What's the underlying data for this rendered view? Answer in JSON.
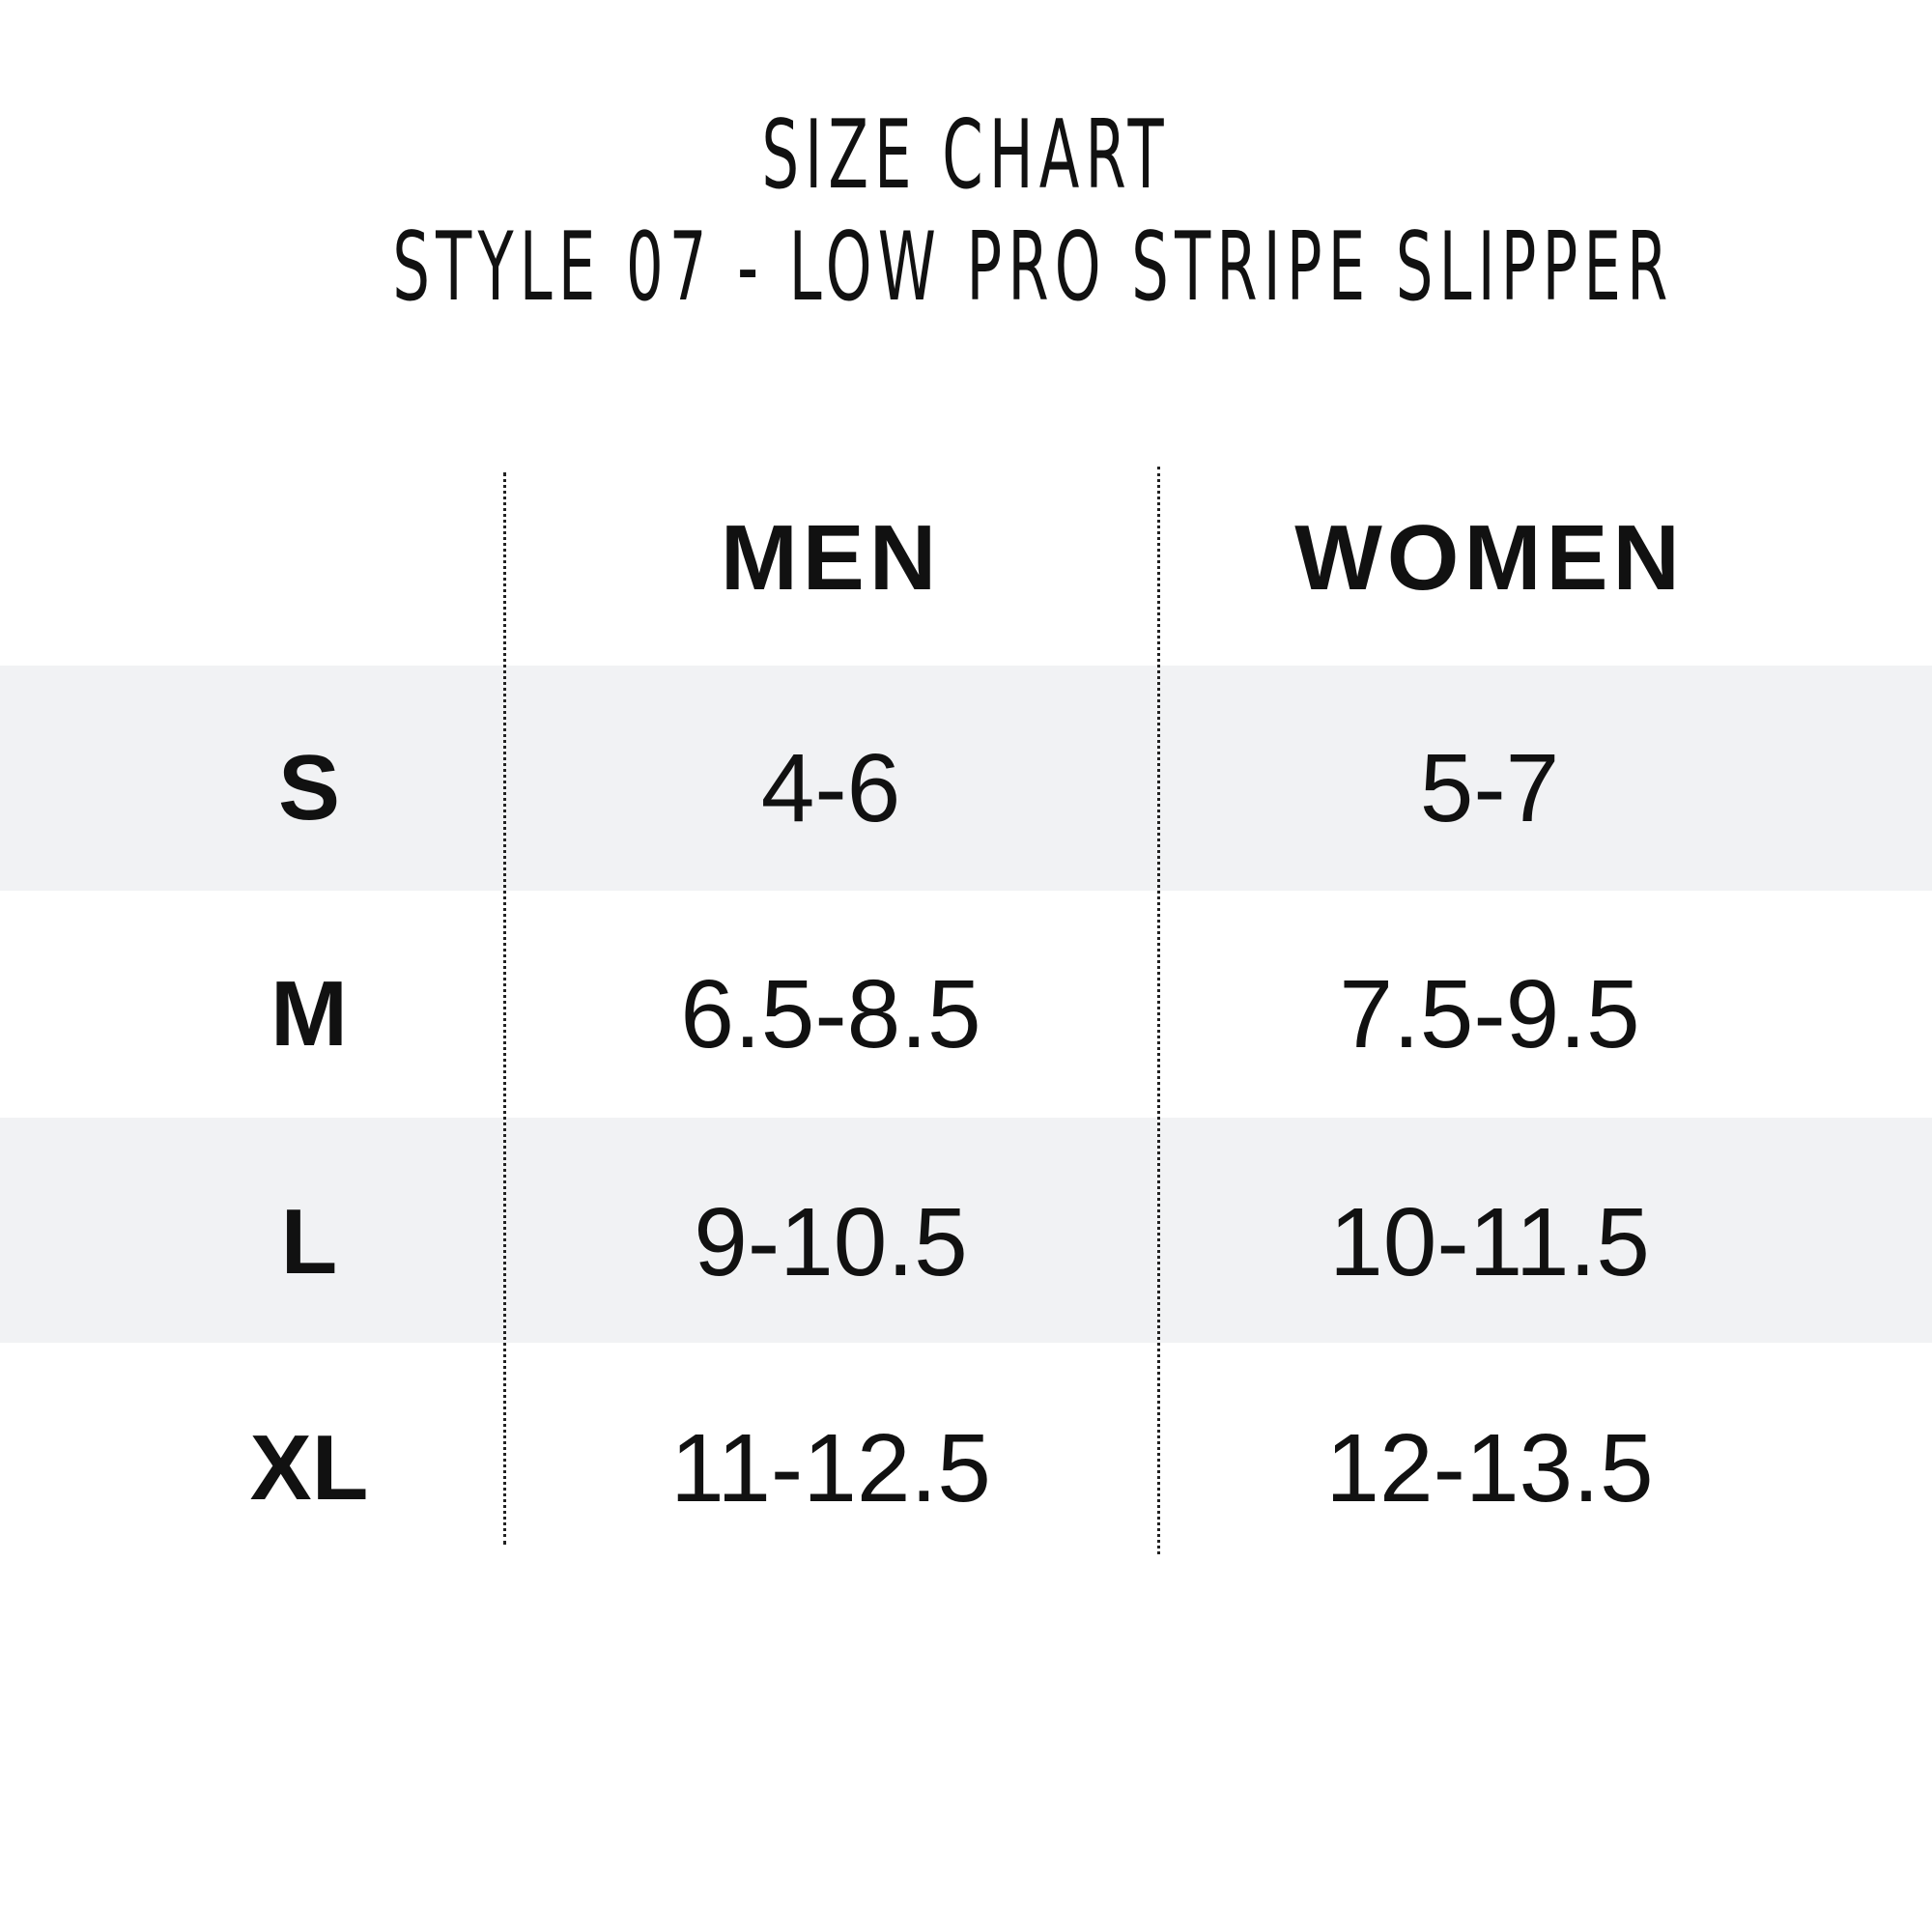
{
  "title": {
    "line1": "SIZE CHART",
    "line2": "STYLE 07 - LOW PRO STRIPE SLIPPER"
  },
  "table": {
    "headers": [
      "",
      "MEN",
      "WOMEN"
    ],
    "rows": [
      {
        "size": "S",
        "men": "4-6",
        "women": "5-7"
      },
      {
        "size": "M",
        "men": "6.5-8.5",
        "women": "7.5-9.5"
      },
      {
        "size": "L",
        "men": "9-10.5",
        "women": "10-11.5"
      },
      {
        "size": "XL",
        "men": "11-12.5",
        "women": "12-13.5"
      }
    ],
    "band_color": "#f1f2f4"
  }
}
